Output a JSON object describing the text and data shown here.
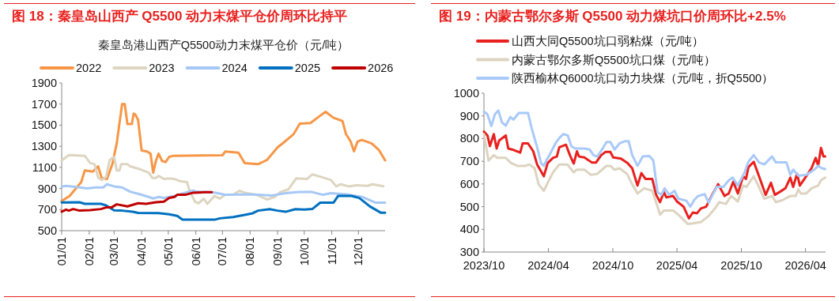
{
  "chart_data": [
    {
      "type": "line",
      "title": "图 18：秦皇岛山西产 Q5500 动力末煤平仓价周环比持平",
      "subtitle": "秦皇岛港山西产Q5500动力末煤平仓价（元/吨）",
      "legend": "top",
      "xlim": [
        "--01-01",
        "--12-31"
      ],
      "xticks": [
        {
          "value": "--01-01",
          "label": "01/01"
        },
        {
          "value": "--02-01",
          "label": "02/01"
        },
        {
          "value": "--03-01",
          "label": "03/01"
        },
        {
          "value": "--04-01",
          "label": "04/01"
        },
        {
          "value": "--05-01",
          "label": "05/01"
        },
        {
          "value": "--06-01",
          "label": "06/01"
        },
        {
          "value": "--07-01",
          "label": "07/01"
        },
        {
          "value": "--08-01",
          "label": "08/01"
        },
        {
          "value": "--09-01",
          "label": "09/01"
        },
        {
          "value": "--10-01",
          "label": "10/01"
        },
        {
          "value": "--11-01",
          "label": "11/01"
        },
        {
          "value": "--12-01",
          "label": "12/01"
        }
      ],
      "ylim": [
        500,
        1900
      ],
      "yticks": [
        500,
        700,
        900,
        1100,
        1300,
        1500,
        1700,
        1900
      ],
      "series": [
        {
          "name": "2022",
          "color": "#f79646",
          "x": [
            "--01-01",
            "--01-10",
            "--01-18",
            "--01-23",
            "--01-27",
            "--02-05",
            "--02-11",
            "--02-15",
            "--02-21",
            "--02-27",
            "--03-04",
            "--03-10",
            "--03-13",
            "--03-16",
            "--03-21",
            "--03-23",
            "--03-25",
            "--03-28",
            "--04-01",
            "--04-07",
            "--04-11",
            "--04-14",
            "--04-17",
            "--04-20",
            "--04-24",
            "--04-28",
            "--05-02",
            "--05-07",
            "--07-01",
            "--07-04",
            "--07-19",
            "--07-26",
            "--08-10",
            "--08-20",
            "--09-01",
            "--09-10",
            "--09-19",
            "--09-26",
            "--10-08",
            "--10-19",
            "--10-25",
            "--11-03",
            "--11-13",
            "--11-17",
            "--11-22",
            "--11-26",
            "--11-30",
            "--12-05",
            "--12-16",
            "--12-24",
            "--12-31"
          ],
          "values": [
            780,
            830,
            910,
            960,
            1070,
            1060,
            1110,
            1000,
            990,
            1130,
            1330,
            1700,
            1700,
            1510,
            1510,
            1610,
            1600,
            1550,
            1260,
            1250,
            1230,
            1050,
            1160,
            1230,
            1160,
            1150,
            1200,
            1210,
            1215,
            1250,
            1240,
            1140,
            1130,
            1170,
            1290,
            1350,
            1415,
            1515,
            1520,
            1590,
            1627,
            1570,
            1540,
            1415,
            1350,
            1253,
            1345,
            1360,
            1327,
            1265,
            1166
          ]
        },
        {
          "name": "2023",
          "color": "#ddd5c0",
          "x": [
            "--01-01",
            "--01-09",
            "--01-27",
            "--02-02",
            "--02-07",
            "--02-11",
            "--02-15",
            "--02-20",
            "--02-24",
            "--03-01",
            "--03-04",
            "--03-07",
            "--03-09",
            "--03-16",
            "--03-19",
            "--03-31",
            "--04-09",
            "--04-13",
            "--04-17",
            "--04-20",
            "--04-26",
            "--05-02",
            "--05-08",
            "--05-14",
            "--05-22",
            "--05-25",
            "--05-31",
            "--06-04",
            "--06-10",
            "--06-14",
            "--06-22",
            "--06-28",
            "--07-04",
            "--07-13",
            "--07-20",
            "--07-26",
            "--08-08",
            "--08-20",
            "--08-29",
            "--09-04",
            "--09-13",
            "--09-22",
            "--10-04",
            "--10-10",
            "--10-22",
            "--10-31",
            "--11-06",
            "--11-11",
            "--11-20",
            "--11-29",
            "--12-11",
            "--12-17",
            "--12-29"
          ],
          "values": [
            1166,
            1216,
            1210,
            1141,
            1130,
            1004,
            980,
            1010,
            1170,
            1200,
            1070,
            1070,
            1130,
            1130,
            1110,
            1080,
            1050,
            1000,
            1000,
            1020,
            990,
            995,
            990,
            970,
            960,
            879,
            774,
            760,
            803,
            754,
            829,
            804,
            841,
            841,
            878,
            860,
            841,
            796,
            820,
            866,
            891,
            996,
            990,
            1033,
            1004,
            980,
            921,
            940,
            920,
            930,
            925,
            940,
            921
          ]
        },
        {
          "name": "2024",
          "color": "#a6c8f5",
          "x": [
            "--01-01",
            "--01-06",
            "--01-21",
            "--01-30",
            "--02-08",
            "--02-17",
            "--02-21",
            "--03-01",
            "--03-10",
            "--03-19",
            "--03-28",
            "--04-09",
            "--04-14",
            "--04-20",
            "--04-26",
            "--05-08",
            "--05-20",
            "--05-29",
            "--06-02",
            "--06-22",
            "--07-04",
            "--08-02",
            "--08-26",
            "--09-10",
            "--09-25",
            "--10-10",
            "--10-22",
            "--10-31",
            "--11-17",
            "--12-05",
            "--12-20",
            "--12-31"
          ],
          "values": [
            917,
            925,
            910,
            900,
            910,
            910,
            940,
            920,
            910,
            870,
            850,
            820,
            805,
            820,
            810,
            830,
            860,
            880,
            870,
            861,
            841,
            845,
            834,
            855,
            866,
            866,
            840,
            856,
            845,
            821,
            766,
            766
          ]
        },
        {
          "name": "2025",
          "color": "#0070c0",
          "x": [
            "--01-01",
            "--01-21",
            "--01-27",
            "--02-14",
            "--02-20",
            "--03-01",
            "--03-10",
            "--03-22",
            "--03-28",
            "--04-20",
            "--05-02",
            "--05-11",
            "--05-17",
            "--06-13",
            "--06-22",
            "--06-28",
            "--07-13",
            "--07-26",
            "--08-04",
            "--08-10",
            "--08-23",
            "--09-01",
            "--09-10",
            "--09-21",
            "--10-01",
            "--10-10",
            "--10-19",
            "--11-03",
            "--11-08",
            "--11-23",
            "--12-02",
            "--12-14",
            "--12-26",
            "--12-31"
          ],
          "values": [
            767,
            770,
            755,
            755,
            740,
            692,
            690,
            680,
            668,
            667,
            655,
            640,
            605,
            605,
            604,
            617,
            629,
            650,
            665,
            690,
            704,
            690,
            679,
            704,
            700,
            705,
            766,
            766,
            829,
            829,
            810,
            729,
            671,
            671
          ]
        },
        {
          "name": "2026",
          "color": "#c00000",
          "x": [
            "--01-01",
            "--01-06",
            "--01-09",
            "--01-14",
            "--01-21",
            "--02-02",
            "--02-14",
            "--02-20",
            "--02-26",
            "--03-04",
            "--03-16",
            "--03-28",
            "--04-06",
            "--04-17",
            "--04-26",
            "--05-02",
            "--05-08",
            "--05-11",
            "--05-20",
            "--05-29",
            "--06-13",
            "--06-19"
          ],
          "values": [
            680,
            700,
            690,
            705,
            690,
            695,
            705,
            720,
            720,
            750,
            730,
            760,
            755,
            770,
            775,
            810,
            820,
            840,
            840,
            860,
            865,
            865
          ]
        }
      ]
    },
    {
      "type": "line",
      "title": "图 19：内蒙古鄂尔多斯 Q5500 动力煤坑口价周环比+2.5%",
      "legend": "top",
      "xlim": [
        "2023-10-01",
        "2026-05-28"
      ],
      "xticks": [
        {
          "value": "2023-10",
          "label": "2023/10"
        },
        {
          "value": "2024-04",
          "label": "2024/04"
        },
        {
          "value": "2024-10",
          "label": "2024/10"
        },
        {
          "value": "2025-04",
          "label": "2025/04"
        },
        {
          "value": "2025-10",
          "label": "2025/10"
        },
        {
          "value": "2026-04",
          "label": "2026/04"
        }
      ],
      "ylim": [
        300,
        1000
      ],
      "yticks": [
        300,
        400,
        500,
        600,
        700,
        800,
        900,
        1000
      ],
      "series": [
        {
          "name": "山西大同Q5500坑口弱粘煤（元/吨）",
          "color": "#e8201e",
          "x": [
            "2023-10-01",
            "2023-10-11",
            "2023-10-18",
            "2023-10-29",
            "2023-11-06",
            "2023-11-13",
            "2023-12-02",
            "2023-12-09",
            "2023-12-24",
            "2024-01-12",
            "2024-01-19",
            "2024-02-03",
            "2024-02-18",
            "2024-02-29",
            "2024-03-19",
            "2024-03-30",
            "2024-04-14",
            "2024-04-25",
            "2024-05-02",
            "2024-05-21",
            "2024-06-01",
            "2024-06-12",
            "2024-06-21",
            "2024-06-27",
            "2024-07-12",
            "2024-08-03",
            "2024-08-14",
            "2024-08-29",
            "2024-09-10",
            "2024-09-24",
            "2024-10-02",
            "2024-10-24",
            "2024-11-12",
            "2024-11-25",
            "2024-12-10",
            "2024-12-21",
            "2025-01-02",
            "2025-01-21",
            "2025-02-01",
            "2025-02-12",
            "2025-02-23",
            "2025-03-02",
            "2025-03-21",
            "2025-04-01",
            "2025-04-20",
            "2025-05-05",
            "2025-05-16",
            "2025-05-28",
            "2025-06-08",
            "2025-06-23",
            "2025-07-12",
            "2025-07-27",
            "2025-08-14",
            "2025-08-26",
            "2025-09-08",
            "2025-09-21",
            "2025-10-06",
            "2025-10-14",
            "2025-10-21",
            "2025-11-05",
            "2025-11-20",
            "2025-12-09",
            "2025-12-24",
            "2026-01-04",
            "2026-01-19",
            "2026-02-03",
            "2026-02-17",
            "2026-02-25",
            "2026-03-08",
            "2026-03-16",
            "2026-04-03",
            "2026-04-18",
            "2026-04-30",
            "2026-05-07",
            "2026-05-15",
            "2026-05-22",
            "2026-05-27"
          ],
          "values": [
            831,
            814,
            767,
            820,
            756,
            791,
            814,
            756,
            750,
            738,
            779,
            779,
            744,
            686,
            634,
            692,
            715,
            721,
            762,
            773,
            727,
            690,
            744,
            721,
            717,
            694,
            694,
            727,
            741,
            741,
            717,
            712,
            692,
            669,
            593,
            648,
            622,
            622,
            552,
            520,
            564,
            541,
            547,
            523,
            500,
            448,
            474,
            471,
            492,
            500,
            558,
            599,
            547,
            558,
            610,
            558,
            634,
            622,
            674,
            698,
            634,
            552,
            605,
            552,
            566,
            581,
            628,
            587,
            645,
            593,
            634,
            669,
            715,
            680,
            759,
            721,
            721
          ]
        },
        {
          "name": "内蒙古鄂尔多斯Q5500坑口煤（元/吨）",
          "color": "#ddd3c0",
          "x": [
            "2023-10-01",
            "2023-10-14",
            "2023-10-29",
            "2023-11-08",
            "2023-12-02",
            "2023-12-17",
            "2024-01-04",
            "2024-01-27",
            "2024-02-07",
            "2024-02-22",
            "2024-03-04",
            "2024-03-19",
            "2024-03-30",
            "2024-04-14",
            "2024-05-02",
            "2024-05-25",
            "2024-06-12",
            "2024-06-20",
            "2024-07-12",
            "2024-07-31",
            "2024-08-18",
            "2024-09-13",
            "2024-09-24",
            "2024-10-06",
            "2024-10-20",
            "2024-11-10",
            "2024-11-25",
            "2024-12-10",
            "2024-12-29",
            "2025-01-21",
            "2025-02-01",
            "2025-02-12",
            "2025-02-23",
            "2025-03-21",
            "2025-04-09",
            "2025-05-01",
            "2025-05-16",
            "2025-06-08",
            "2025-06-30",
            "2025-07-19",
            "2025-07-30",
            "2025-08-18",
            "2025-09-02",
            "2025-09-21",
            "2025-10-06",
            "2025-10-15",
            "2025-11-05",
            "2025-11-16",
            "2025-12-05",
            "2025-12-27",
            "2026-01-07",
            "2026-01-26",
            "2026-02-17",
            "2026-03-04",
            "2026-03-12",
            "2026-03-19",
            "2026-04-03",
            "2026-04-18",
            "2026-05-07",
            "2026-05-15",
            "2026-05-27"
          ],
          "values": [
            820,
            703,
            727,
            715,
            715,
            692,
            680,
            680,
            686,
            669,
            599,
            570,
            605,
            651,
            686,
            686,
            651,
            663,
            663,
            640,
            645,
            680,
            680,
            663,
            669,
            645,
            599,
            558,
            581,
            570,
            518,
            465,
            483,
            483,
            459,
            424,
            426,
            432,
            459,
            494,
            520,
            512,
            547,
            523,
            593,
            587,
            634,
            599,
            535,
            547,
            520,
            529,
            547,
            547,
            576,
            558,
            558,
            581,
            593,
            616,
            628
          ]
        },
        {
          "name": "陕西榆林Q6000坑口动力块煤（元/吨，折Q5500）",
          "color": "#a9c9f8",
          "x": [
            "2023-10-01",
            "2023-10-11",
            "2023-10-22",
            "2023-11-01",
            "2023-11-11",
            "2023-11-21",
            "2023-12-02",
            "2023-12-15",
            "2023-12-24",
            "2024-01-08",
            "2024-02-03",
            "2024-02-14",
            "2024-02-29",
            "2024-03-11",
            "2024-03-19",
            "2024-03-26",
            "2024-04-06",
            "2024-04-21",
            "2024-05-02",
            "2024-05-13",
            "2024-05-26",
            "2024-06-05",
            "2024-06-16",
            "2024-07-12",
            "2024-07-27",
            "2024-08-07",
            "2024-08-18",
            "2024-09-02",
            "2024-09-13",
            "2024-09-24",
            "2024-10-06",
            "2024-10-20",
            "2024-11-04",
            "2024-11-15",
            "2024-11-25",
            "2024-12-10",
            "2024-12-25",
            "2025-01-13",
            "2025-01-24",
            "2025-02-05",
            "2025-02-16",
            "2025-02-25",
            "2025-03-10",
            "2025-03-25",
            "2025-04-05",
            "2025-04-28",
            "2025-05-09",
            "2025-05-20",
            "2025-05-31",
            "2025-06-19",
            "2025-06-30",
            "2025-07-23",
            "2025-08-11",
            "2025-08-26",
            "2025-09-06",
            "2025-09-21",
            "2025-10-10",
            "2025-10-21",
            "2025-11-05",
            "2025-11-20",
            "2025-12-05",
            "2025-12-27",
            "2026-01-07",
            "2026-02-06",
            "2026-02-17",
            "2026-02-25",
            "2026-03-12",
            "2026-04-03",
            "2026-04-26",
            "2026-05-07",
            "2026-05-18",
            "2026-05-27"
          ],
          "values": [
            919,
            907,
            855,
            907,
            924,
            872,
            857,
            895,
            884,
            913,
            913,
            843,
            762,
            692,
            680,
            703,
            733,
            779,
            802,
            820,
            814,
            767,
            756,
            756,
            752,
            727,
            721,
            756,
            785,
            785,
            752,
            779,
            788,
            788,
            727,
            680,
            721,
            723,
            703,
            564,
            552,
            581,
            552,
            570,
            535,
            526,
            500,
            529,
            547,
            555,
            518,
            587,
            587,
            616,
            628,
            593,
            651,
            698,
            727,
            695,
            686,
            721,
            695,
            695,
            640,
            663,
            636,
            640,
            663,
            680,
            669,
            666
          ]
        }
      ]
    }
  ]
}
